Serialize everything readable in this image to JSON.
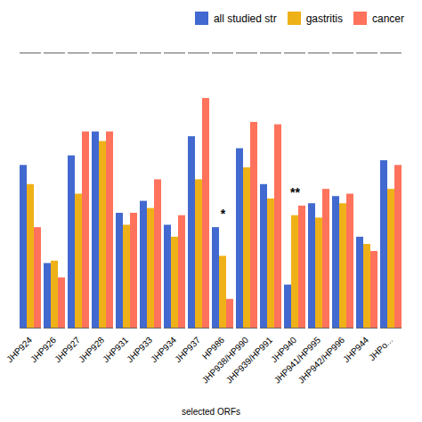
{
  "chart_data": {
    "type": "bar",
    "xlabel": "selected ORFs",
    "categories": [
      "JHP924",
      "JHP926",
      "JHP927",
      "JHP928",
      "JHP931",
      "JHP933",
      "JHP934",
      "JHP937",
      "HP986",
      "JHP938/HP990",
      "JHP939/HP991",
      "JHP940",
      "JHP941/HP995",
      "JHP942/HP996",
      "JHP944",
      "JHPo..."
    ],
    "series": [
      {
        "name": "all studied str",
        "values": [
          0.68,
          0.27,
          0.72,
          0.82,
          0.48,
          0.53,
          0.43,
          0.8,
          0.42,
          0.75,
          0.6,
          0.18,
          0.52,
          0.55,
          0.38,
          0.7
        ]
      },
      {
        "name": "gastritis",
        "values": [
          0.6,
          0.28,
          0.56,
          0.78,
          0.43,
          0.5,
          0.38,
          0.62,
          0.3,
          0.67,
          0.54,
          0.47,
          0.46,
          0.52,
          0.35,
          0.58
        ]
      },
      {
        "name": "cancer",
        "values": [
          0.42,
          0.21,
          0.82,
          0.82,
          0.48,
          0.62,
          0.47,
          0.96,
          0.12,
          0.86,
          0.85,
          0.51,
          0.58,
          0.56,
          0.32,
          0.68
        ]
      }
    ],
    "annotations": [
      {
        "x": "HP986",
        "y": 0.46,
        "label": "*"
      },
      {
        "x": "JHP940",
        "y": 0.55,
        "label": "**"
      }
    ],
    "ylim": [
      0,
      1.15
    ],
    "tick_labels": "x",
    "legend": "upper right"
  }
}
